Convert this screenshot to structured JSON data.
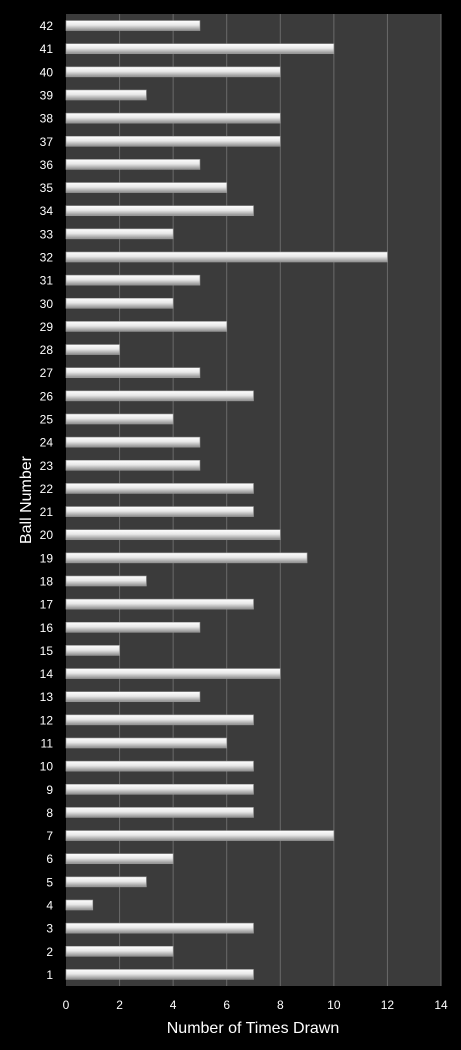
{
  "chart_data": {
    "type": "bar",
    "orientation": "horizontal",
    "xlabel": "Number of Times Drawn",
    "ylabel": "Ball Number",
    "xlim": [
      0,
      14
    ],
    "x_ticks": [
      0,
      2,
      4,
      6,
      8,
      10,
      12,
      14
    ],
    "grid": "vertical",
    "categories": [
      "1",
      "2",
      "3",
      "4",
      "5",
      "6",
      "7",
      "8",
      "9",
      "10",
      "11",
      "12",
      "13",
      "14",
      "15",
      "16",
      "17",
      "18",
      "19",
      "20",
      "21",
      "22",
      "23",
      "24",
      "25",
      "26",
      "27",
      "28",
      "29",
      "30",
      "31",
      "32",
      "33",
      "34",
      "35",
      "36",
      "37",
      "38",
      "39",
      "40",
      "41",
      "42"
    ],
    "values": [
      7,
      4,
      7,
      1,
      3,
      4,
      10,
      7,
      7,
      7,
      6,
      7,
      5,
      8,
      2,
      5,
      7,
      3,
      9,
      8,
      7,
      7,
      5,
      5,
      4,
      7,
      5,
      2,
      6,
      4,
      5,
      12,
      4,
      7,
      6,
      5,
      8,
      8,
      3,
      8,
      10,
      5
    ],
    "colors": {
      "background": "#000000",
      "plot_area": "#3b3b3b",
      "gridline": "#6a6a6a",
      "bar_light": "#ffffff",
      "bar_dark": "#8c8c8c",
      "text": "#ffffff"
    }
  }
}
